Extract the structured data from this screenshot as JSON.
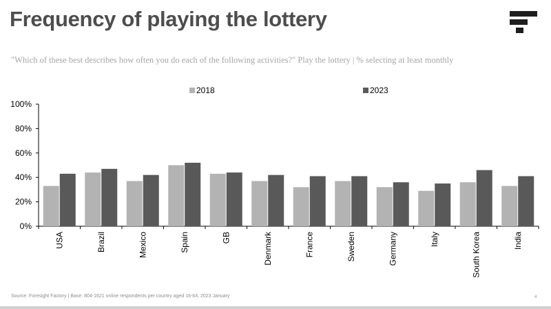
{
  "title": "Frequency of playing the lottery",
  "subtitle": "\"Which of these best describes how often you do each of the following activities?\" Play the lottery | % selecting at least monthly",
  "footer": "Source: Foresight Factory  |  Base:  804-1621 online respondents per country aged 16-64,  2023 January",
  "page_number": "4",
  "colors": {
    "series_2018": "#b3b3b3",
    "series_2023": "#595959",
    "title": "#4d4d4d"
  },
  "logo_icon": "foresight-factory-logo-icon",
  "chart_data": {
    "type": "bar",
    "categories": [
      "USA",
      "Brazil",
      "Mexico",
      "Spain",
      "GB",
      "Denmark",
      "France",
      "Sweden",
      "Germany",
      "Italy",
      "South Korea",
      "India"
    ],
    "series": [
      {
        "name": "2018",
        "values": [
          33,
          44,
          37,
          50,
          43,
          37,
          32,
          37,
          32,
          29,
          36,
          33
        ]
      },
      {
        "name": "2023",
        "values": [
          43,
          47,
          42,
          52,
          44,
          42,
          41,
          41,
          36,
          35,
          46,
          41
        ]
      }
    ],
    "yticks": [
      "0%",
      "20%",
      "40%",
      "60%",
      "80%",
      "100%"
    ],
    "ylim": [
      0,
      100
    ],
    "title": "",
    "xlabel": "",
    "ylabel": "",
    "grid": false,
    "legend": "top"
  }
}
